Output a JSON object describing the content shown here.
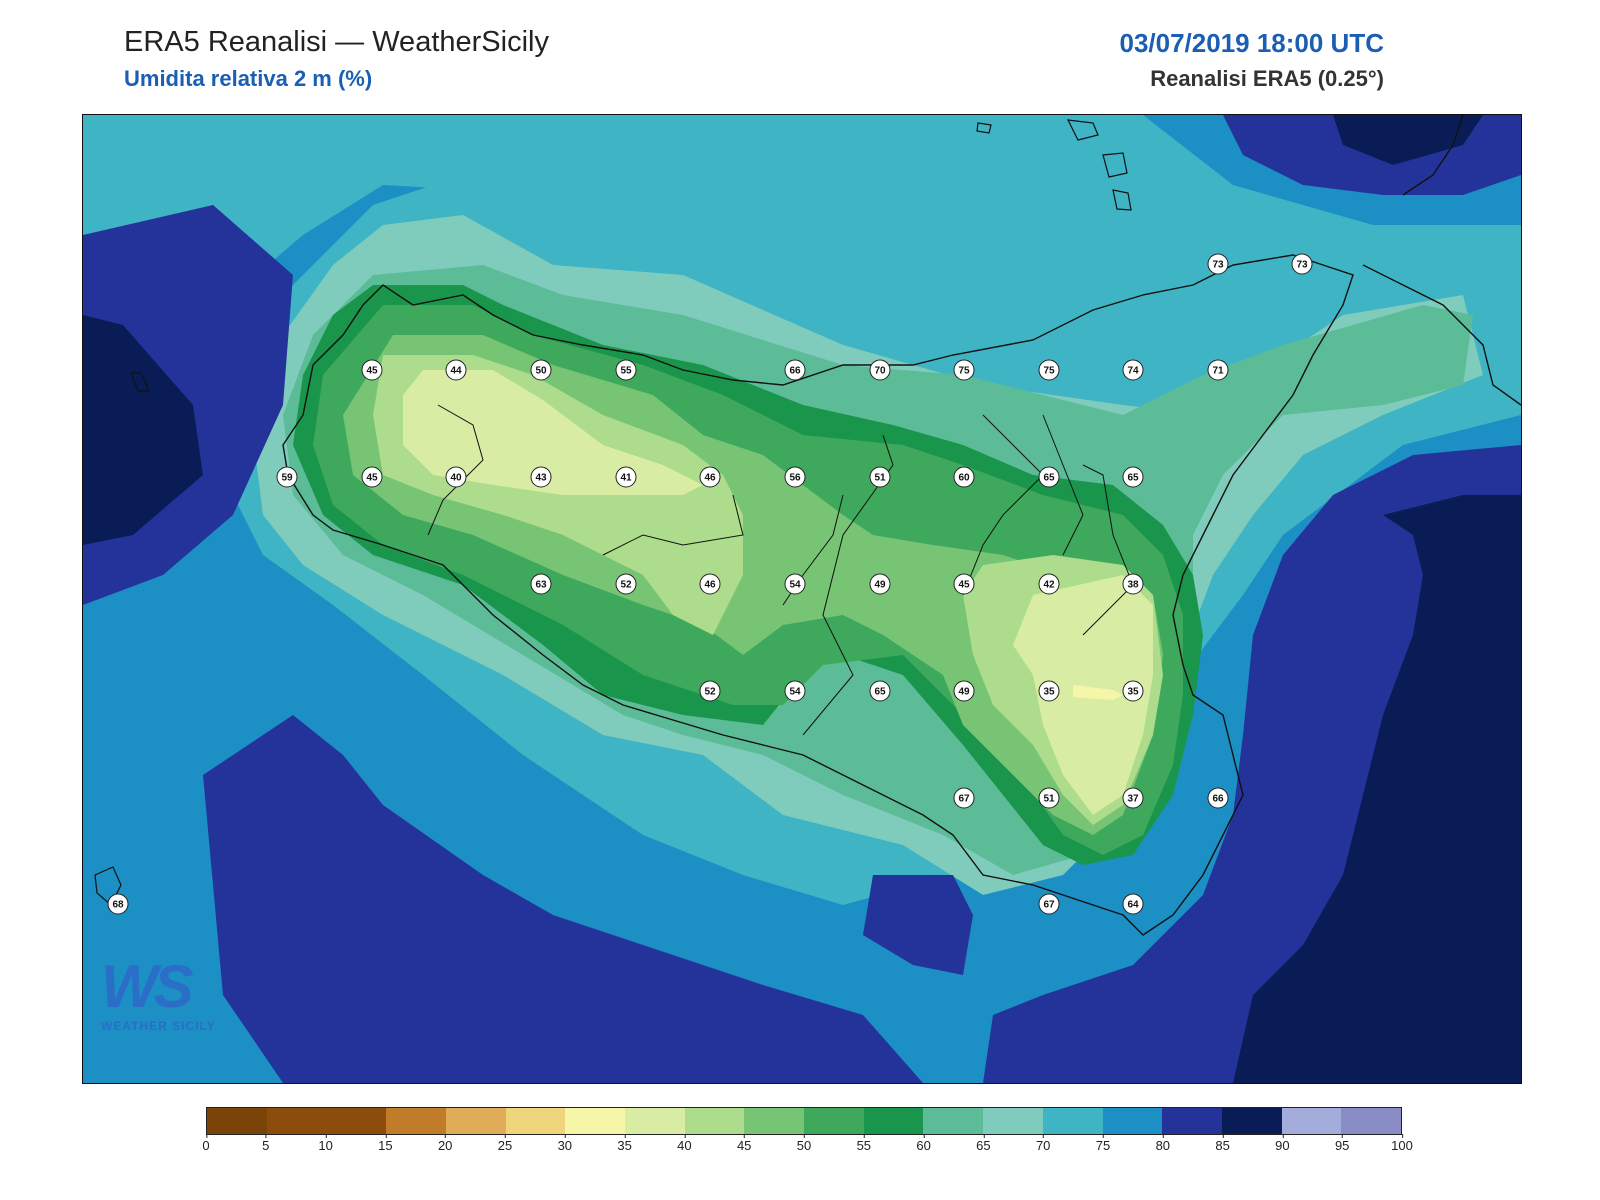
{
  "header": {
    "title": "ERA5 Reanalisi — WeatherSicily",
    "subtitle": "Umidita relativa 2 m (%)",
    "datetime": "03/07/2019 18:00 UTC",
    "source": "Reanalisi ERA5 (0.25°)"
  },
  "logo": {
    "text": "WS",
    "brand": "WEATHER SICILY"
  },
  "colorbar": {
    "colors": [
      "#7a4408",
      "#8c4c0c",
      "#8c4c0c",
      "#c07c28",
      "#e0ac58",
      "#f0d47c",
      "#f6f6a8",
      "#d8eca4",
      "#acdc8c",
      "#76c474",
      "#3ea85c",
      "#1a954c",
      "#5cbc98",
      "#80ccbc",
      "#3fb4c4",
      "#1c8fc4",
      "#24339a",
      "#0a1c56",
      "#a4acdc",
      "#8a8cc8"
    ],
    "ticks": [
      "0",
      "5",
      "10",
      "15",
      "20",
      "25",
      "30",
      "35",
      "40",
      "45",
      "50",
      "55",
      "60",
      "65",
      "70",
      "75",
      "80",
      "85",
      "90",
      "95",
      "100"
    ]
  },
  "station_values": [
    {
      "v": "45",
      "c": "#acdc8c"
    },
    {
      "v": "44",
      "c": "#acdc8c"
    },
    {
      "v": "50",
      "c": "#76c474"
    },
    {
      "v": "55",
      "c": "#3ea85c"
    },
    {
      "v": "66",
      "c": "#80ccbc"
    },
    {
      "v": "70",
      "c": "#80ccbc"
    },
    {
      "v": "75",
      "c": "#3fb4c4"
    },
    {
      "v": "75",
      "c": "#3fb4c4"
    },
    {
      "v": "74",
      "c": "#3fb4c4"
    },
    {
      "v": "71",
      "c": "#3fb4c4"
    },
    {
      "v": "59",
      "c": "#5cbc98"
    },
    {
      "v": "45",
      "c": "#acdc8c"
    },
    {
      "v": "40",
      "c": "#d8eca4"
    },
    {
      "v": "43",
      "c": "#acdc8c"
    },
    {
      "v": "41",
      "c": "#d8eca4"
    },
    {
      "v": "46",
      "c": "#acdc8c"
    },
    {
      "v": "56",
      "c": "#3ea85c"
    },
    {
      "v": "51",
      "c": "#76c474"
    },
    {
      "v": "60",
      "c": "#1a954c"
    },
    {
      "v": "65",
      "c": "#5cbc98"
    },
    {
      "v": "65",
      "c": "#5cbc98"
    },
    {
      "v": "63",
      "c": "#5cbc98"
    },
    {
      "v": "52",
      "c": "#76c474"
    },
    {
      "v": "46",
      "c": "#acdc8c"
    },
    {
      "v": "54",
      "c": "#3ea85c"
    },
    {
      "v": "49",
      "c": "#acdc8c"
    },
    {
      "v": "45",
      "c": "#acdc8c"
    },
    {
      "v": "42",
      "c": "#d8eca4"
    },
    {
      "v": "38",
      "c": "#d8eca4"
    },
    {
      "v": "52",
      "c": "#3ea85c"
    },
    {
      "v": "54",
      "c": "#3ea85c"
    },
    {
      "v": "65",
      "c": "#5cbc98"
    },
    {
      "v": "49",
      "c": "#76c474"
    },
    {
      "v": "35",
      "c": "#d8eca4"
    },
    {
      "v": "35",
      "c": "#d8eca4"
    },
    {
      "v": "67",
      "c": "#80ccbc"
    },
    {
      "v": "51",
      "c": "#3ea85c"
    },
    {
      "v": "37",
      "c": "#d8eca4"
    },
    {
      "v": "66",
      "c": "#80ccbc"
    },
    {
      "v": "68",
      "c": "#80ccbc"
    },
    {
      "v": "67",
      "c": "#80ccbc"
    },
    {
      "v": "64",
      "c": "#5cbc98"
    },
    {
      "v": "73",
      "c": "#3fb4c4"
    },
    {
      "v": "73",
      "c": "#3fb4c4"
    }
  ]
}
